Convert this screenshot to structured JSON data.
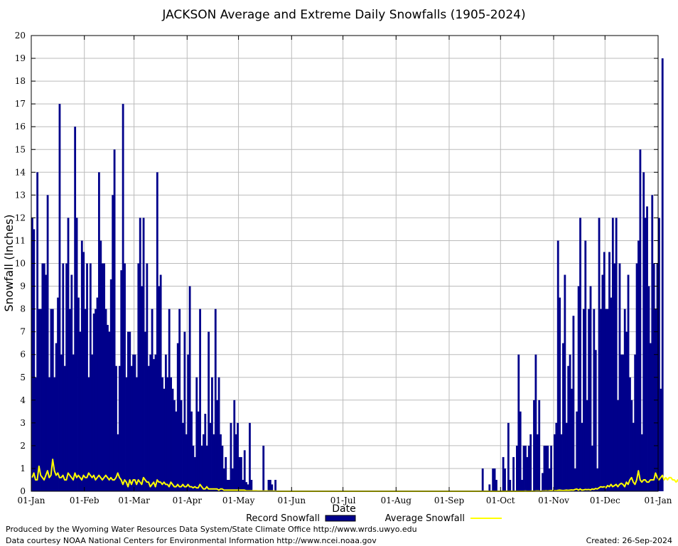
{
  "footer": {
    "produced_by": "Produced by the Wyoming Water Resources Data System/State Climate Office http://www.wrds.uwyo.edu",
    "data_courtesy": "Data courtesy NOAA National Centers for Environmental Information http://www.ncei.noaa.gov",
    "created": "Created:  26-Sep-2024"
  },
  "chart_data": {
    "type": "bar",
    "title": "JACKSON Average and Extreme Daily Snowfalls (1905-2024)",
    "xlabel": "Date",
    "ylabel": "Snowfall (Inches)",
    "ylim": [
      0,
      20
    ],
    "xlim_days": [
      1,
      366
    ],
    "grid": true,
    "legend_placement": "bottom",
    "y_ticks": [
      "0",
      "1",
      "2",
      "3",
      "4",
      "5",
      "6",
      "7",
      "8",
      "9",
      "10",
      "11",
      "12",
      "13",
      "14",
      "15",
      "16",
      "17",
      "18",
      "19",
      "20"
    ],
    "x_ticks": [
      {
        "label": "01-Jan",
        "day": 1
      },
      {
        "label": "01-Feb",
        "day": 32
      },
      {
        "label": "01-Mar",
        "day": 61
      },
      {
        "label": "01-Apr",
        "day": 92
      },
      {
        "label": "01-May",
        "day": 122
      },
      {
        "label": "01-Jun",
        "day": 153
      },
      {
        "label": "01-Jul",
        "day": 183
      },
      {
        "label": "01-Aug",
        "day": 214
      },
      {
        "label": "01-Sep",
        "day": 245
      },
      {
        "label": "01-Oct",
        "day": 275
      },
      {
        "label": "01-Nov",
        "day": 306
      },
      {
        "label": "01-Dec",
        "day": 336
      },
      {
        "label": "01-Jan",
        "day": 367
      }
    ],
    "colors": {
      "record": "#00008b",
      "average": "#ffff00",
      "grid": "#bbbbbb"
    },
    "series": [
      {
        "name": "Record Snowfall",
        "style": "bars",
        "start_day": 1,
        "values": [
          12,
          11.5,
          5,
          14,
          8,
          8,
          10,
          10,
          9.5,
          13,
          5,
          8,
          8,
          5,
          6.5,
          8.5,
          17,
          6,
          10,
          5.5,
          10,
          12,
          8,
          9.5,
          6,
          16,
          12,
          8.5,
          7,
          11,
          10.5,
          8,
          10,
          5,
          10,
          6,
          7.8,
          8,
          8.5,
          14,
          11,
          10,
          10,
          8,
          7.3,
          7,
          9.3,
          13,
          15,
          5.5,
          2.5,
          5.5,
          9.7,
          17,
          10,
          5,
          7,
          7,
          5.5,
          6,
          6,
          5,
          10,
          12,
          9,
          12,
          7,
          10,
          5.5,
          6,
          8,
          5.8,
          6,
          14,
          9,
          9.5,
          5,
          4.5,
          6,
          5,
          8,
          5,
          4.5,
          4,
          3.5,
          6.5,
          8,
          4,
          3,
          7,
          2.5,
          6,
          9,
          3.5,
          2,
          1.5,
          5,
          3.5,
          8,
          2,
          2.5,
          3.4,
          2,
          7,
          3,
          5,
          2.5,
          8,
          4,
          5,
          2.5,
          2,
          1,
          1.5,
          0.5,
          0.5,
          3,
          1,
          4,
          2.5,
          3,
          1.5,
          1.5,
          0.5,
          1.8,
          0.4,
          0.3,
          3,
          0.5,
          0,
          0,
          0,
          0,
          0,
          0,
          2,
          0,
          0,
          0.5,
          0.5,
          0.3,
          0,
          0.5,
          0,
          0,
          0,
          0,
          0,
          0,
          0,
          0,
          0,
          0,
          0,
          0,
          0,
          0,
          0,
          0,
          0,
          0,
          0,
          0,
          0,
          0,
          0,
          0,
          0,
          0,
          0,
          0,
          0,
          0,
          0,
          0,
          0,
          0,
          0,
          0,
          0,
          0,
          0,
          0,
          0,
          0,
          0,
          0,
          0,
          0,
          0,
          0,
          0,
          0,
          0,
          0,
          0,
          0,
          0,
          0,
          0,
          0,
          0,
          0,
          0,
          0,
          0,
          0,
          0,
          0,
          0,
          0,
          0,
          0,
          0,
          0,
          0,
          0,
          0,
          0,
          0,
          0,
          0,
          0,
          0,
          0,
          0,
          0,
          0,
          0,
          0,
          0,
          0,
          0,
          0,
          0,
          0,
          0,
          0,
          0,
          0,
          0,
          0,
          0,
          0,
          0,
          0,
          0,
          0,
          0,
          0,
          0,
          0,
          0,
          0,
          0,
          0,
          0,
          0,
          0,
          0,
          0,
          0,
          0,
          1,
          0,
          0,
          0,
          0.3,
          0,
          1,
          1,
          0.5,
          0,
          0,
          0,
          1.5,
          1,
          0,
          3,
          0.5,
          0,
          1.5,
          0,
          2,
          6,
          3.5,
          0.5,
          2,
          2,
          1.5,
          2,
          2.5,
          0,
          4,
          6,
          2.5,
          4,
          0,
          0.8,
          2,
          2,
          2,
          1,
          2,
          0,
          2.5,
          3,
          11,
          8.5,
          2.5,
          6.5,
          9.5,
          3,
          5.5,
          6,
          4.5,
          7.7,
          1,
          3.5,
          9,
          12,
          3,
          8,
          11,
          4,
          8,
          9,
          2,
          8,
          6.2,
          1,
          12,
          8,
          9.5,
          10.5,
          8,
          8,
          10.5,
          8.5,
          12,
          10,
          12,
          4,
          10,
          6,
          6,
          8,
          7,
          9.5,
          5,
          4,
          3,
          6,
          10,
          11,
          15,
          2.5,
          14,
          12,
          12.5,
          9,
          6.5,
          13,
          10,
          8,
          10,
          12,
          4.5,
          19
        ]
      },
      {
        "name": "Average Snowfall",
        "style": "line",
        "start_day": 1,
        "values": [
          0.6,
          0.8,
          0.5,
          0.5,
          1.1,
          0.7,
          0.6,
          0.5,
          0.7,
          0.9,
          0.6,
          0.7,
          1.4,
          0.9,
          0.7,
          0.8,
          0.6,
          0.6,
          0.7,
          0.5,
          0.5,
          0.8,
          0.7,
          0.6,
          0.5,
          0.8,
          0.6,
          0.7,
          0.6,
          0.5,
          0.7,
          0.6,
          0.6,
          0.8,
          0.7,
          0.6,
          0.7,
          0.5,
          0.6,
          0.7,
          0.6,
          0.5,
          0.6,
          0.7,
          0.6,
          0.5,
          0.6,
          0.5,
          0.5,
          0.6,
          0.8,
          0.6,
          0.5,
          0.3,
          0.5,
          0.4,
          0.2,
          0.5,
          0.3,
          0.5,
          0.5,
          0.3,
          0.5,
          0.4,
          0.3,
          0.6,
          0.5,
          0.4,
          0.4,
          0.2,
          0.3,
          0.4,
          0.2,
          0.5,
          0.4,
          0.4,
          0.3,
          0.4,
          0.3,
          0.3,
          0.2,
          0.4,
          0.3,
          0.2,
          0.2,
          0.3,
          0.2,
          0.2,
          0.3,
          0.2,
          0.2,
          0.3,
          0.2,
          0.2,
          0.15,
          0.2,
          0.15,
          0.15,
          0.3,
          0.2,
          0.1,
          0.1,
          0.2,
          0.1,
          0.1,
          0.1,
          0.1,
          0.1,
          0.1,
          0.05,
          0.1,
          0.1,
          0.05,
          0.05,
          0.05,
          0.05,
          0.05,
          0.05,
          0.05,
          0.05,
          0.05,
          0.05,
          0.05,
          0.05,
          0.05,
          0.02,
          0.02,
          0.02,
          0.02,
          0.02,
          0.02,
          0.02,
          0.01,
          0.01,
          0.01,
          0.01,
          0.01,
          0.01,
          0.01,
          0.01,
          0.01,
          0.01,
          0.01,
          0,
          0,
          0,
          0,
          0,
          0,
          0,
          0,
          0,
          0,
          0,
          0,
          0,
          0,
          0,
          0,
          0,
          0,
          0,
          0,
          0,
          0,
          0,
          0,
          0,
          0,
          0,
          0,
          0,
          0,
          0,
          0,
          0,
          0,
          0,
          0,
          0,
          0,
          0,
          0,
          0,
          0,
          0,
          0,
          0,
          0,
          0,
          0,
          0,
          0,
          0,
          0,
          0,
          0,
          0,
          0,
          0,
          0,
          0,
          0,
          0,
          0,
          0,
          0,
          0,
          0,
          0,
          0,
          0,
          0,
          0,
          0,
          0,
          0,
          0,
          0,
          0,
          0,
          0,
          0,
          0,
          0,
          0,
          0,
          0,
          0,
          0,
          0,
          0,
          0,
          0,
          0,
          0,
          0,
          0,
          0,
          0,
          0,
          0,
          0,
          0,
          0,
          0,
          0,
          0,
          0,
          0,
          0,
          0,
          0,
          0,
          0,
          0,
          0,
          0,
          0,
          0,
          0,
          0,
          0,
          0,
          0,
          0,
          0,
          0,
          0,
          0,
          0,
          0,
          0,
          0,
          0,
          0,
          0,
          0,
          0,
          0,
          0,
          0,
          0,
          0,
          0,
          0,
          0,
          0,
          0.01,
          0,
          0,
          0,
          0.01,
          0,
          0.01,
          0.01,
          0.01,
          0,
          0.01,
          0.01,
          0.02,
          0.01,
          0.02,
          0.03,
          0.02,
          0.03,
          0.02,
          0.04,
          0.05,
          0.04,
          0.03,
          0.04,
          0.05,
          0.04,
          0.05,
          0.06,
          0.05,
          0.08,
          0.1,
          0.05,
          0.1,
          0.05,
          0.06,
          0.08,
          0.07,
          0.08,
          0.06,
          0.1,
          0.08,
          0.12,
          0.1,
          0.15,
          0.2,
          0.18,
          0.2,
          0.15,
          0.25,
          0.2,
          0.3,
          0.2,
          0.25,
          0.3,
          0.2,
          0.3,
          0.35,
          0.3,
          0.2,
          0.4,
          0.3,
          0.5,
          0.6,
          0.4,
          0.3,
          0.5,
          0.9,
          0.5,
          0.4,
          0.5,
          0.5,
          0.4,
          0.4,
          0.5,
          0.5,
          0.5,
          0.8,
          0.6,
          0.5,
          0.6,
          0.7,
          0.5,
          0.6,
          0.5,
          0.6,
          0.6,
          0.5,
          0.5,
          0.4,
          0.5,
          0.3,
          0.4,
          0.5,
          0.6,
          0.4,
          0.6,
          0.5,
          0.7,
          0.5,
          0.6,
          0.7,
          0.6,
          0.7,
          0.8,
          1.2,
          0.9,
          0.6,
          0.7,
          0.7,
          0.8,
          0.8
        ]
      }
    ]
  }
}
